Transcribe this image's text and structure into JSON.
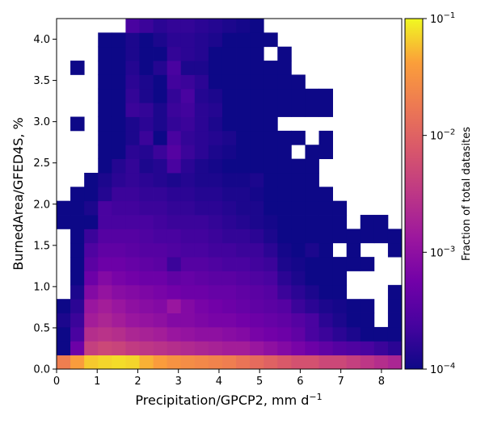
{
  "chart_data": {
    "type": "heatmap",
    "xlabel": "Precipitation/GPCP2,  mm d",
    "xlabel_exponent": "−1",
    "ylabel": "BurnedArea/GFED4S,  %",
    "colorbar_label": "Fraction of total datasites",
    "colormap": "plasma",
    "color_scale": "log",
    "vlim": [
      0.0001,
      0.1
    ],
    "xlim": [
      0,
      8.5
    ],
    "ylim": [
      0,
      4.25
    ],
    "x_bin_width": 0.34,
    "y_bin_width": 0.17,
    "x_ticks": [
      "0",
      "1",
      "2",
      "3",
      "4",
      "5",
      "6",
      "7",
      "8"
    ],
    "y_ticks": [
      "0.0",
      "0.5",
      "1.0",
      "1.5",
      "2.0",
      "2.5",
      "3.0",
      "3.5",
      "4.0"
    ],
    "colorbar_ticks": [
      {
        "base": "10",
        "exp": "−1"
      },
      {
        "base": "10",
        "exp": "−2"
      },
      {
        "base": "10",
        "exp": "−3"
      },
      {
        "base": "10",
        "exp": "−4"
      }
    ],
    "grid": false,
    "grid_log10_values_by_row_from_bottom": [
      [
        -1.7,
        -1.4,
        -1.2,
        -1.15,
        -1.12,
        -1.15,
        -1.3,
        -1.4,
        -1.5,
        -1.55,
        -1.6,
        -1.65,
        -1.7,
        -1.8,
        -1.9,
        -2.0,
        -2.1,
        -2.2,
        -2.2,
        -2.3,
        -2.3,
        -2.4,
        -2.5,
        -2.6,
        -2.7
      ],
      [
        -4.0,
        -3.3,
        -2.4,
        -2.3,
        -2.35,
        -2.45,
        -2.5,
        -2.55,
        -2.6,
        -2.65,
        -2.7,
        -2.75,
        -2.8,
        -2.8,
        -2.9,
        -3.0,
        -3.1,
        -3.2,
        -3.3,
        -3.4,
        -3.5,
        -3.55,
        -3.6,
        -3.7,
        -3.8
      ],
      [
        -4.0,
        -3.6,
        -2.6,
        -2.55,
        -2.6,
        -2.7,
        -2.75,
        -2.8,
        -2.9,
        -2.95,
        -3.0,
        -3.0,
        -3.05,
        -3.1,
        -3.2,
        -3.25,
        -3.3,
        -3.4,
        -3.6,
        -3.7,
        -3.8,
        -3.9,
        -4.0,
        -4.0,
        -4.0
      ],
      [
        -3.9,
        -3.7,
        -2.8,
        -2.7,
        -2.8,
        -2.9,
        -2.95,
        -3.0,
        -3.1,
        -3.1,
        -3.15,
        -3.2,
        -3.2,
        -3.25,
        -3.3,
        -3.35,
        -3.4,
        -3.5,
        -3.6,
        -3.8,
        -3.9,
        -4.0,
        -4.0,
        null,
        -4.0
      ],
      [
        -4.0,
        -3.8,
        -2.9,
        -2.8,
        -2.9,
        -3.0,
        -3.05,
        -3.1,
        -2.9,
        -3.1,
        -3.2,
        -3.25,
        -3.3,
        -3.35,
        -3.4,
        -3.45,
        -3.5,
        -3.7,
        -3.8,
        -3.9,
        -3.95,
        -4.0,
        -4.0,
        null,
        -4.0
      ],
      [
        null,
        -3.9,
        -3.1,
        -2.95,
        -3.05,
        -3.1,
        -3.15,
        -3.2,
        -3.25,
        -3.3,
        -3.3,
        -3.35,
        -3.35,
        -3.4,
        -3.45,
        -3.5,
        -3.7,
        -3.8,
        -3.9,
        -4.0,
        -4.0,
        null,
        null,
        null,
        -4.0
      ],
      [
        null,
        -4.0,
        -3.3,
        -3.1,
        -3.2,
        -3.25,
        -3.3,
        -3.3,
        -3.4,
        -3.35,
        -3.4,
        -3.45,
        -3.45,
        -3.5,
        -3.55,
        -3.6,
        -3.8,
        -3.9,
        -4.0,
        -4.0,
        -4.0,
        null,
        null,
        null,
        null
      ],
      [
        null,
        -4.0,
        -3.45,
        -3.3,
        -3.3,
        -3.35,
        -3.4,
        -3.45,
        -3.7,
        -3.5,
        -3.5,
        -3.55,
        -3.6,
        -3.6,
        -3.65,
        -3.7,
        -3.9,
        -3.95,
        -4.0,
        -4.0,
        -4.0,
        -4.0,
        -4.0,
        null,
        null
      ],
      [
        null,
        -4.0,
        -3.55,
        -3.4,
        -3.4,
        -3.45,
        -3.5,
        -3.5,
        -3.55,
        -3.6,
        -3.6,
        -3.65,
        -3.65,
        -3.7,
        -3.7,
        -3.8,
        -3.95,
        -4.0,
        -3.9,
        -4.0,
        null,
        -4.0,
        null,
        null,
        -4.0
      ],
      [
        null,
        -4.0,
        -3.7,
        -3.5,
        -3.5,
        -3.5,
        -3.55,
        -3.6,
        -3.6,
        -3.65,
        -3.65,
        -3.7,
        -3.75,
        -3.75,
        -3.8,
        -3.9,
        -4.0,
        -4.0,
        -4.0,
        -4.0,
        -4.0,
        -4.0,
        -4.0,
        -4.0,
        -4.0
      ],
      [
        -4.0,
        -4.0,
        -4.0,
        -3.6,
        -3.6,
        -3.6,
        -3.6,
        -3.65,
        -3.7,
        -3.7,
        -3.7,
        -3.75,
        -3.8,
        -3.85,
        -3.9,
        -3.95,
        -4.0,
        -4.0,
        -4.0,
        -4.0,
        -4.0,
        null,
        -4.0,
        -4.0,
        null
      ],
      [
        -4.0,
        -4.0,
        -3.9,
        -3.6,
        -3.65,
        -3.65,
        -3.7,
        -3.7,
        -3.75,
        -3.75,
        -3.8,
        -3.8,
        -3.85,
        -3.9,
        -3.9,
        -4.0,
        -4.0,
        -4.0,
        -4.0,
        -4.0,
        -4.0,
        null,
        null,
        null,
        null
      ],
      [
        null,
        -4.0,
        -4.0,
        -3.85,
        -3.7,
        -3.7,
        -3.75,
        -3.75,
        -3.8,
        -3.8,
        -3.85,
        -3.85,
        -3.9,
        -3.9,
        -3.95,
        -4.0,
        -4.0,
        -4.0,
        -4.0,
        -4.0,
        null,
        null,
        null,
        null,
        null
      ],
      [
        null,
        null,
        -4.0,
        -3.9,
        -3.8,
        -3.75,
        -3.8,
        -3.85,
        -3.9,
        -3.85,
        -3.9,
        -3.9,
        -3.95,
        -3.95,
        -3.9,
        -4.0,
        -4.0,
        -4.0,
        -4.0,
        null,
        null,
        null,
        null,
        null,
        null
      ],
      [
        null,
        null,
        null,
        -4.0,
        -3.85,
        -3.75,
        -3.9,
        -3.85,
        -3.6,
        -3.8,
        -3.9,
        -3.95,
        -4.0,
        -4.0,
        -4.0,
        -4.0,
        -4.0,
        -4.0,
        -4.0,
        null,
        null,
        null,
        null,
        null,
        null
      ],
      [
        null,
        null,
        null,
        -4.0,
        -4.0,
        -3.8,
        -3.85,
        -3.7,
        -3.5,
        -3.7,
        -3.8,
        -3.9,
        -3.95,
        -4.0,
        -4.0,
        -4.0,
        -4.0,
        null,
        -4.0,
        -4.0,
        null,
        null,
        null,
        null,
        null
      ],
      [
        null,
        null,
        null,
        -4.0,
        -4.0,
        -3.9,
        -3.7,
        -4.0,
        -3.6,
        -3.75,
        -3.8,
        -3.85,
        -3.9,
        -4.0,
        -4.0,
        -4.0,
        -4.0,
        -4.0,
        null,
        -4.0,
        null,
        null,
        null,
        null,
        null
      ],
      [
        null,
        -4.0,
        null,
        -4.0,
        -4.0,
        -3.9,
        -3.8,
        -3.9,
        -3.75,
        -3.7,
        -3.8,
        -3.9,
        -4.0,
        -4.0,
        -4.0,
        -4.0,
        null,
        null,
        null,
        null,
        null,
        null,
        null,
        null,
        null
      ],
      [
        null,
        null,
        null,
        -4.0,
        -4.0,
        -3.7,
        -3.75,
        -3.9,
        -3.7,
        -3.65,
        -3.8,
        -3.85,
        -4.0,
        -4.0,
        -4.0,
        -4.0,
        -4.0,
        -4.0,
        -4.0,
        -4.0,
        null,
        null,
        null,
        null,
        null
      ],
      [
        null,
        null,
        null,
        -4.0,
        -4.0,
        -3.75,
        -3.9,
        -4.0,
        -3.75,
        -3.6,
        -3.85,
        -3.9,
        -4.0,
        -4.0,
        -4.0,
        -4.0,
        -4.0,
        -4.0,
        -4.0,
        -4.0,
        null,
        null,
        null,
        null,
        null
      ],
      [
        null,
        null,
        null,
        -4.0,
        -4.0,
        -3.8,
        -3.9,
        -4.0,
        -3.65,
        -3.7,
        -3.8,
        -4.0,
        -4.0,
        -4.0,
        -4.0,
        -4.0,
        -4.0,
        -4.0,
        null,
        null,
        null,
        null,
        null,
        null,
        null
      ],
      [
        null,
        -4.0,
        null,
        -4.0,
        -4.0,
        -3.85,
        -4.0,
        -3.85,
        -3.6,
        -3.9,
        -3.9,
        -4.0,
        -4.0,
        -4.0,
        -4.0,
        -4.0,
        -4.0,
        null,
        null,
        null,
        null,
        null,
        null,
        null,
        null
      ],
      [
        null,
        null,
        null,
        -4.0,
        -4.0,
        -3.9,
        -4.0,
        -4.0,
        -3.75,
        -3.8,
        -3.85,
        -4.0,
        -4.0,
        -4.0,
        -4.0,
        null,
        -4.0,
        null,
        null,
        null,
        null,
        null,
        null,
        null,
        null
      ],
      [
        null,
        null,
        null,
        -4.0,
        -4.0,
        -3.9,
        -4.0,
        -3.9,
        -3.8,
        -3.8,
        -3.85,
        -3.9,
        -4.0,
        -4.0,
        -4.0,
        -4.0,
        null,
        null,
        null,
        null,
        null,
        null,
        null,
        null,
        null
      ],
      [
        null,
        null,
        null,
        null,
        null,
        -3.6,
        -3.7,
        -3.8,
        -3.75,
        -3.75,
        -3.8,
        -3.85,
        -3.9,
        -3.95,
        -4.0,
        null,
        null,
        null,
        null,
        null,
        null,
        null,
        null,
        null,
        null
      ]
    ]
  }
}
